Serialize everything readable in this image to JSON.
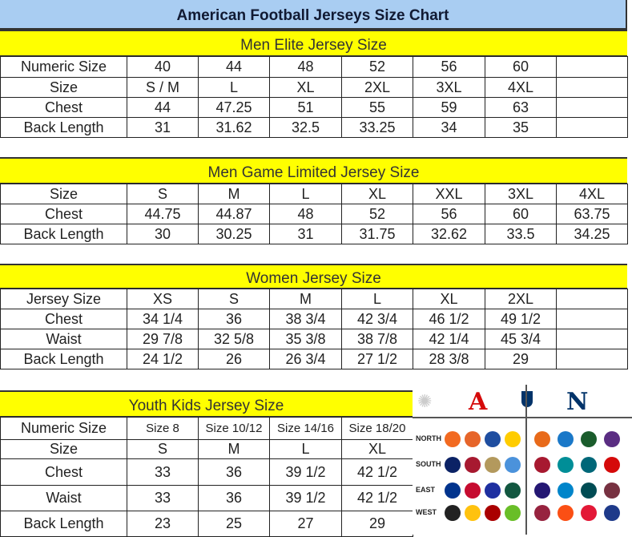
{
  "title": "American Football Jerseys Size Chart",
  "men_elite": {
    "heading": "Men Elite Jersey Size",
    "rows": [
      [
        "Numeric Size",
        "40",
        "44",
        "48",
        "52",
        "56",
        "60",
        ""
      ],
      [
        "Size",
        "S / M",
        "L",
        "XL",
        "2XL",
        "3XL",
        "4XL",
        ""
      ],
      [
        "Chest",
        "44",
        "47.25",
        "51",
        "55",
        "59",
        "63",
        ""
      ],
      [
        "Back Length",
        "31",
        "31.62",
        "32.5",
        "33.25",
        "34",
        "35",
        ""
      ]
    ]
  },
  "men_game": {
    "heading": "Men Game Limited Jersey Size",
    "rows": [
      [
        "Size",
        "S",
        "M",
        "L",
        "XL",
        "XXL",
        "3XL",
        "4XL"
      ],
      [
        "Chest",
        "44.75",
        "44.87",
        "48",
        "52",
        "56",
        "60",
        "63.75"
      ],
      [
        "Back Length",
        "30",
        "30.25",
        "31",
        "31.75",
        "32.62",
        "33.5",
        "34.25"
      ]
    ]
  },
  "women": {
    "heading": "Women Jersey Size",
    "rows": [
      [
        "Jersey Size",
        "XS",
        "S",
        "M",
        "L",
        "XL",
        "2XL",
        ""
      ],
      [
        "Chest",
        "34 1/4",
        "36",
        "38 3/4",
        "42 3/4",
        "46 1/2",
        "49 1/2",
        ""
      ],
      [
        "Waist",
        "29 7/8",
        "32 5/8",
        "35 3/8",
        "38 7/8",
        "42 1/4",
        "45 3/4",
        ""
      ],
      [
        "Back Length",
        "24 1/2",
        "26",
        "26 3/4",
        "27 1/2",
        "28 3/8",
        "29",
        ""
      ]
    ]
  },
  "youth": {
    "heading": "Youth Kids Jersey Size",
    "rows": [
      [
        "Numeric Size",
        "Size 8",
        "Size 10/12",
        "Size 14/16",
        "Size 18/20"
      ],
      [
        "Size",
        "S",
        "M",
        "L",
        "XL"
      ],
      [
        "Chest",
        "33",
        "36",
        "39 1/2",
        "42 1/2"
      ],
      [
        "Waist",
        "33",
        "36",
        "39 1/2",
        "42 1/2"
      ],
      [
        "Back Length",
        "23",
        "25",
        "27",
        "29"
      ]
    ]
  },
  "logos": {
    "divisions": [
      "NORTH",
      "SOUTH",
      "EAST",
      "WEST"
    ],
    "icons": [
      "afc-logo-icon",
      "nfl-shield-icon",
      "nfc-logo-icon"
    ],
    "team_colors": [
      [
        "#f26a21",
        "#e6652a",
        "#1f4ea0",
        "#ffcc00",
        "#e86a1a",
        "#1a78c8",
        "#1a5c2c",
        "#5a2d82"
      ],
      [
        "#0b2265",
        "#a71930",
        "#b3995d",
        "#4b92db",
        "#a71930",
        "#008e97",
        "#006778",
        "#d50a0a"
      ],
      [
        "#00338d",
        "#c60c30",
        "#1e2fa0",
        "#125740",
        "#241773",
        "#0085ca",
        "#004c54",
        "#773141"
      ],
      [
        "#222222",
        "#ffc20e",
        "#aa0000",
        "#69be28",
        "#97233f",
        "#fb4f14",
        "#e31837",
        "#1e3a8a"
      ]
    ]
  }
}
